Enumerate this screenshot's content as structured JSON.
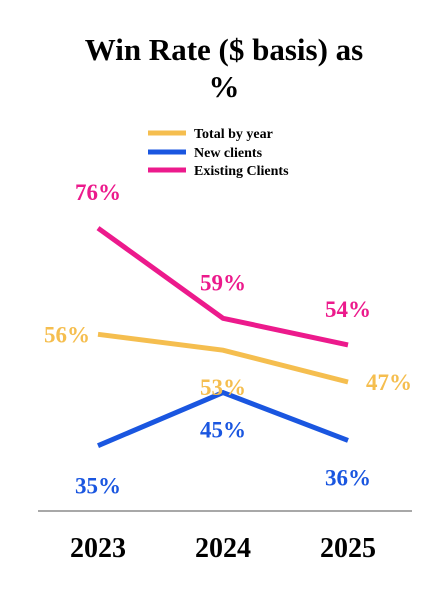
{
  "chart_data": {
    "type": "line",
    "title_lines": [
      "Win Rate ($ basis) as",
      "%"
    ],
    "categories": [
      "2023",
      "2024",
      "2025"
    ],
    "series": [
      {
        "name": "Total by year",
        "values": [
          56,
          53,
          47
        ],
        "labels": [
          "56%",
          "53%",
          "47%"
        ],
        "color": "#F5BE4F"
      },
      {
        "name": "New clients",
        "values": [
          35,
          45,
          36
        ],
        "labels": [
          "35%",
          "45%",
          "36%"
        ],
        "color": "#1A56E0"
      },
      {
        "name": "Existing Clients",
        "values": [
          76,
          59,
          54
        ],
        "labels": [
          "76%",
          "59%",
          "54%"
        ],
        "color": "#EC1A8C"
      }
    ],
    "legend_position": "top",
    "grid": false,
    "y_axis_visible": false
  }
}
